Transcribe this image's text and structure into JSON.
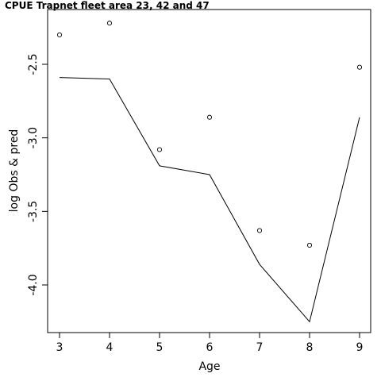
{
  "chart_data": {
    "type": "line",
    "title": "CPUE Trapnet fleet area 23, 42 and 47",
    "xlabel": "Age",
    "ylabel": "log Obs & pred",
    "xlim": [
      3,
      9
    ],
    "ylim": [
      -4.0,
      -2.5
    ],
    "x_ticks": [
      "3",
      "4",
      "5",
      "6",
      "7",
      "8",
      "9"
    ],
    "y_ticks": [
      "-2.5",
      "-3.0",
      "-3.5",
      "-4.0"
    ],
    "series": [
      {
        "style": "points",
        "x": [
          3,
          4,
          5,
          6,
          7,
          8,
          9
        ],
        "values": [
          -2.3,
          -2.22,
          -3.08,
          -2.86,
          -3.63,
          -3.73,
          -2.52
        ]
      },
      {
        "style": "line",
        "x": [
          3,
          4,
          5,
          6,
          7,
          8,
          9
        ],
        "values": [
          -2.59,
          -2.6,
          -3.19,
          -3.25,
          -3.86,
          -4.25,
          -2.86
        ]
      }
    ]
  }
}
